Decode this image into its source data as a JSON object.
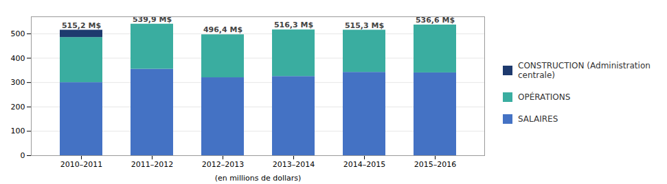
{
  "chart_data": {
    "type": "bar",
    "stacked": true,
    "categories": [
      "2010–2011",
      "2011–2012",
      "2012–2013",
      "2013–2014",
      "2014–2015",
      "2015–2016"
    ],
    "series": [
      {
        "name": "SALAIRES",
        "color": "#4472c4",
        "values": [
          300,
          355,
          320,
          325,
          342,
          340
        ]
      },
      {
        "name": "OPÉRATIONS",
        "color": "#3aada0",
        "values": [
          185.2,
          184.9,
          176.4,
          191.3,
          173.3,
          196.6
        ]
      },
      {
        "name": "CONSTRUCTION (Administration centrale)",
        "color": "#1e3a6e",
        "values": [
          30,
          0,
          0,
          0,
          0,
          0
        ]
      }
    ],
    "totals": {
      "values": [
        515.2,
        539.9,
        496.4,
        516.3,
        515.3,
        536.6
      ],
      "value_labels": [
        "515,2 M$",
        "539,9 M$",
        "496,4 M$",
        "516,3 M$",
        "515,3 M$",
        "536,6 M$"
      ]
    },
    "xlabel": "(en millions de dollars)",
    "ylim": [
      0,
      570
    ],
    "yticks": [
      0,
      100,
      200,
      300,
      400,
      500
    ],
    "grid": true,
    "legend": "right"
  }
}
